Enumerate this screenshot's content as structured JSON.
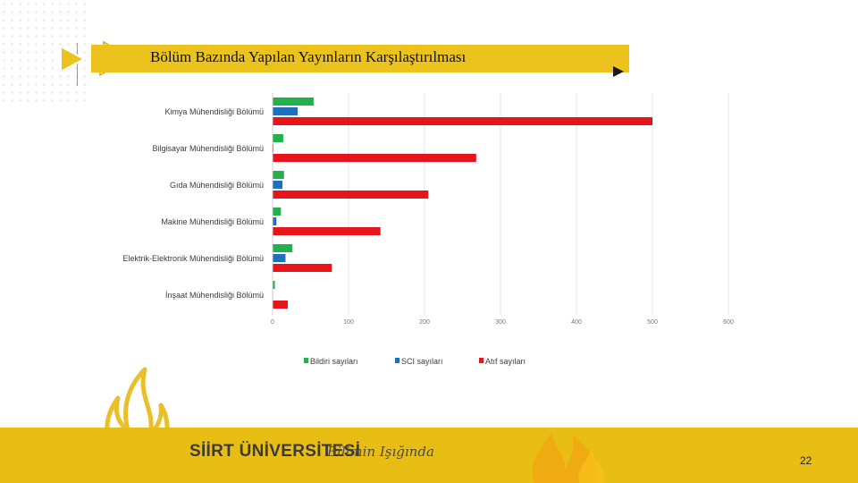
{
  "slide": {
    "title": "Bölüm Bazında Yapılan Yayınların Karşılaştırılması",
    "brand_name": "SİİRT ÜNİVERSİTESİ",
    "brand_slogan": "Bilimin Işığında",
    "page_number": "22"
  },
  "chart_data": {
    "type": "bar",
    "orientation": "horizontal",
    "categories": [
      "Kimya Mühendisliği Bölümü",
      "Bilgisayar Mühendisliği Bölümü",
      "Gıda Mühendisliği Bölümü",
      "Makine Mühendisliği Bölümü",
      "Elektrik-Elektronik Mühendisliği Bölümü",
      "İnşaat Mühendisliği Bölümü"
    ],
    "series": [
      {
        "name": "Bildiri sayıları",
        "color": "#22b14c",
        "values": [
          54,
          14,
          15,
          11,
          26,
          3
        ]
      },
      {
        "name": "SCI sayıları",
        "color": "#1f6fbf",
        "values": [
          33,
          1,
          13,
          5,
          17,
          0
        ]
      },
      {
        "name": "Atıf sayıları",
        "color": "#e8141b",
        "values": [
          500,
          268,
          205,
          142,
          78,
          20
        ]
      }
    ],
    "xlim": [
      0,
      600
    ],
    "xticks": [
      "0",
      "100",
      "200",
      "300",
      "400",
      "500",
      "600"
    ],
    "grid": true,
    "legend": "bottom"
  }
}
